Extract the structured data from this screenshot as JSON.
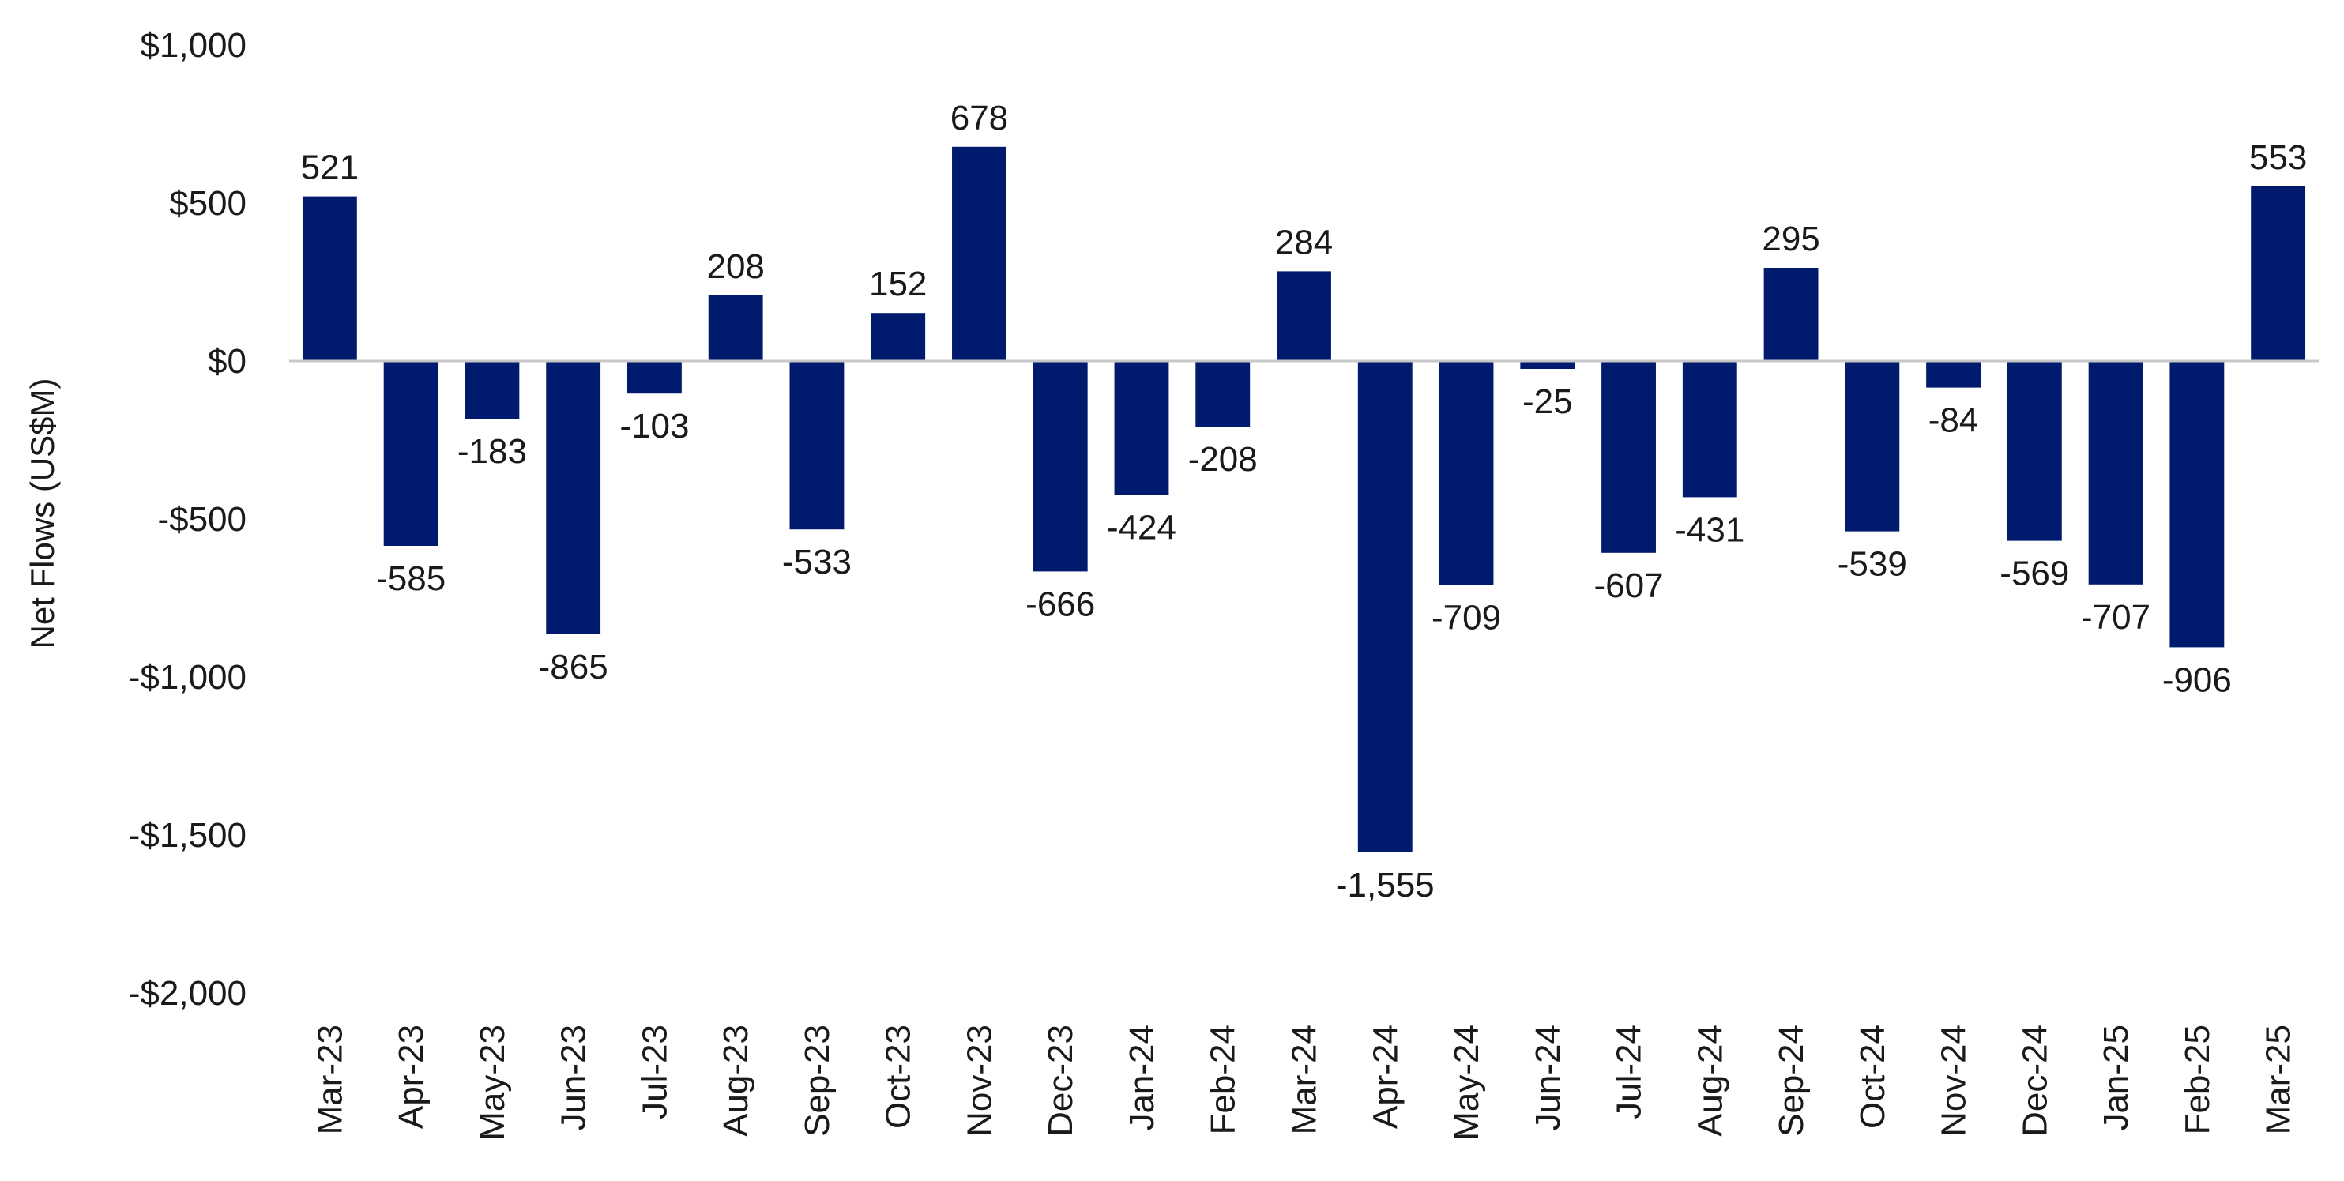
{
  "chart_data": {
    "type": "bar",
    "title": "",
    "xlabel": "",
    "ylabel": "Net Flows (US$M)",
    "ylim": [
      -2000,
      1000
    ],
    "yticks": [
      {
        "value": 1000,
        "label": "$1,000"
      },
      {
        "value": 500,
        "label": "$500"
      },
      {
        "value": 0,
        "label": "$0"
      },
      {
        "value": -500,
        "label": "-$500"
      },
      {
        "value": -1000,
        "label": "-$1,000"
      },
      {
        "value": -1500,
        "label": "-$1,500"
      },
      {
        "value": -2000,
        "label": "-$2,000"
      }
    ],
    "grid": false,
    "bar_color": "#001a6e",
    "categories": [
      "Mar-23",
      "Apr-23",
      "May-23",
      "Jun-23",
      "Jul-23",
      "Aug-23",
      "Sep-23",
      "Oct-23",
      "Nov-23",
      "Dec-23",
      "Jan-24",
      "Feb-24",
      "Mar-24",
      "Apr-24",
      "May-24",
      "Jun-24",
      "Jul-24",
      "Aug-24",
      "Sep-24",
      "Oct-24",
      "Nov-24",
      "Dec-24",
      "Jan-25",
      "Feb-25",
      "Mar-25"
    ],
    "values": [
      521,
      -585,
      -183,
      -865,
      -103,
      208,
      -533,
      152,
      678,
      -666,
      -424,
      -208,
      284,
      -1555,
      -709,
      -25,
      -607,
      -431,
      295,
      -539,
      -84,
      -569,
      -707,
      -906,
      553
    ],
    "data_labels": [
      "521",
      "-585",
      "-183",
      "-865",
      "-103",
      "208",
      "-533",
      "152",
      "678",
      "-666",
      "-424",
      "-208",
      "284",
      "-1,555",
      "-709",
      "-25",
      "-607",
      "-431",
      "295",
      "-539",
      "-84",
      "-569",
      "-707",
      "-906",
      "553"
    ]
  }
}
